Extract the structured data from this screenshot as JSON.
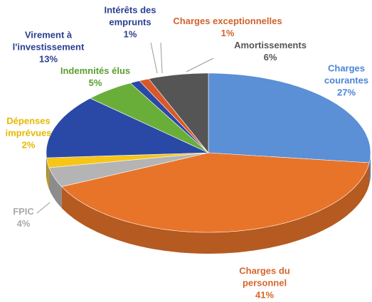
{
  "chart_data": {
    "type": "pie",
    "categories": [
      "Charges courantes",
      "Charges du personnel",
      "FPIC",
      "Dépenses imprévues",
      "Virement à l'investissement",
      "Indemnités élus",
      "Intérêts des emprunts",
      "Charges exceptionnelles",
      "Amortissements"
    ],
    "values": [
      27,
      41,
      4,
      2,
      13,
      5,
      1,
      1,
      6
    ],
    "value_labels": [
      "27%",
      "41%",
      "4%",
      "2%",
      "13%",
      "5%",
      "1%",
      "1%",
      "6%"
    ],
    "colors": [
      "#5b8fd6",
      "#e8742a",
      "#b4b4b4",
      "#f5c518",
      "#2a49a6",
      "#6aae3a",
      "#2a49a6",
      "#d9582a",
      "#555555"
    ]
  }
}
